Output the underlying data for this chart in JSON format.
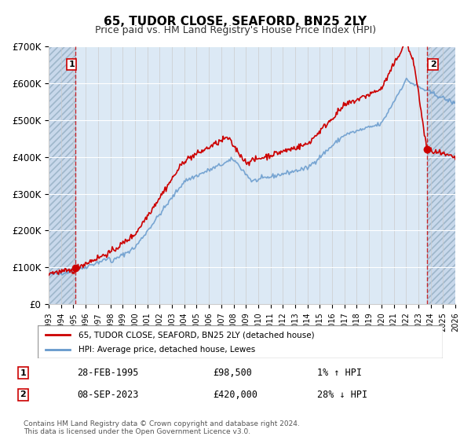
{
  "title": "65, TUDOR CLOSE, SEAFORD, BN25 2LY",
  "subtitle": "Price paid vs. HM Land Registry's House Price Index (HPI)",
  "ylabel": "",
  "background_chart": "#dce9f5",
  "background_hatch": "#c8d8eb",
  "line_color_red": "#cc0000",
  "line_color_blue": "#6699cc",
  "point1_x": 1995.16,
  "point1_y": 98500,
  "point2_x": 2023.69,
  "point2_y": 420000,
  "xmin": 1993,
  "xmax": 2026,
  "ymin": 0,
  "ymax": 700000,
  "yticks": [
    0,
    100000,
    200000,
    300000,
    400000,
    500000,
    600000,
    700000
  ],
  "ytick_labels": [
    "£0",
    "£100K",
    "£200K",
    "£300K",
    "£400K",
    "£500K",
    "£600K",
    "£700K"
  ],
  "xticks": [
    1993,
    1994,
    1995,
    1996,
    1997,
    1998,
    1999,
    2000,
    2001,
    2002,
    2003,
    2004,
    2005,
    2006,
    2007,
    2008,
    2009,
    2010,
    2011,
    2012,
    2013,
    2014,
    2015,
    2016,
    2017,
    2018,
    2019,
    2020,
    2021,
    2022,
    2023,
    2024,
    2025,
    2026
  ],
  "legend_label1": "65, TUDOR CLOSE, SEAFORD, BN25 2LY (detached house)",
  "legend_label2": "HPI: Average price, detached house, Lewes",
  "note1_label": "1",
  "note1_date": "28-FEB-1995",
  "note1_price": "£98,500",
  "note1_hpi": "1% ↑ HPI",
  "note2_label": "2",
  "note2_date": "08-SEP-2023",
  "note2_price": "£420,000",
  "note2_hpi": "28% ↓ HPI",
  "footer": "Contains HM Land Registry data © Crown copyright and database right 2024.\nThis data is licensed under the Open Government Licence v3.0."
}
